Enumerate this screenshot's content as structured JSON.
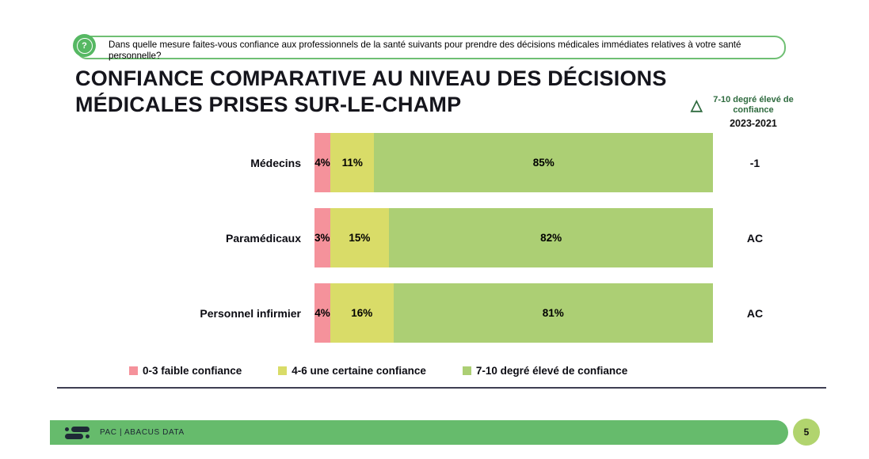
{
  "question_banner": {
    "icon": "question-bubble-icon",
    "text": "Dans quelle mesure faites-vous confiance aux professionnels de la santé suivants pour prendre des décisions médicales immédiates relatives à votre santé personnelle?",
    "border_color": "#6FBF73",
    "icon_color": "#56B863",
    "question_mark": "?"
  },
  "title_lines": {
    "line1": "CONFIANCE COMPARATIVE AU NIVEAU DES DÉCISIONS",
    "line2": "MÉDICALES PRISES SUR-LE-CHAMP"
  },
  "delta_header": {
    "symbol": "△",
    "label": "7-10 degré élevé de confiance",
    "period": "2023-2021",
    "text_color": "#2F6B3F"
  },
  "chart_data": {
    "type": "bar",
    "orientation": "horizontal",
    "stacked": true,
    "unit": "%",
    "xlim": [
      0,
      100
    ],
    "grid": false,
    "legend_position": "bottom",
    "categories": [
      "Médecins",
      "Paramédicaux",
      "Personnel infirmier"
    ],
    "series": [
      {
        "name": "0-3 faible confiance",
        "color": "#F5929B",
        "values": [
          4,
          3,
          4
        ]
      },
      {
        "name": "4-6 une certaine confiance",
        "color": "#D9DC68",
        "values": [
          11,
          15,
          16
        ]
      },
      {
        "name": "7-10 degré élevé de confiance",
        "color": "#ACCF74",
        "values": [
          85,
          82,
          81
        ]
      }
    ],
    "delta_column_header": "7-10 degré élevé de confiance 2023-2021",
    "delta_values": [
      "-1",
      "AC",
      "AC"
    ]
  },
  "footer": {
    "brand": "PAC | ABACUS DATA",
    "page_number": "5",
    "bar_color": "#66BB6C",
    "page_circle_color": "#B1D46E"
  }
}
